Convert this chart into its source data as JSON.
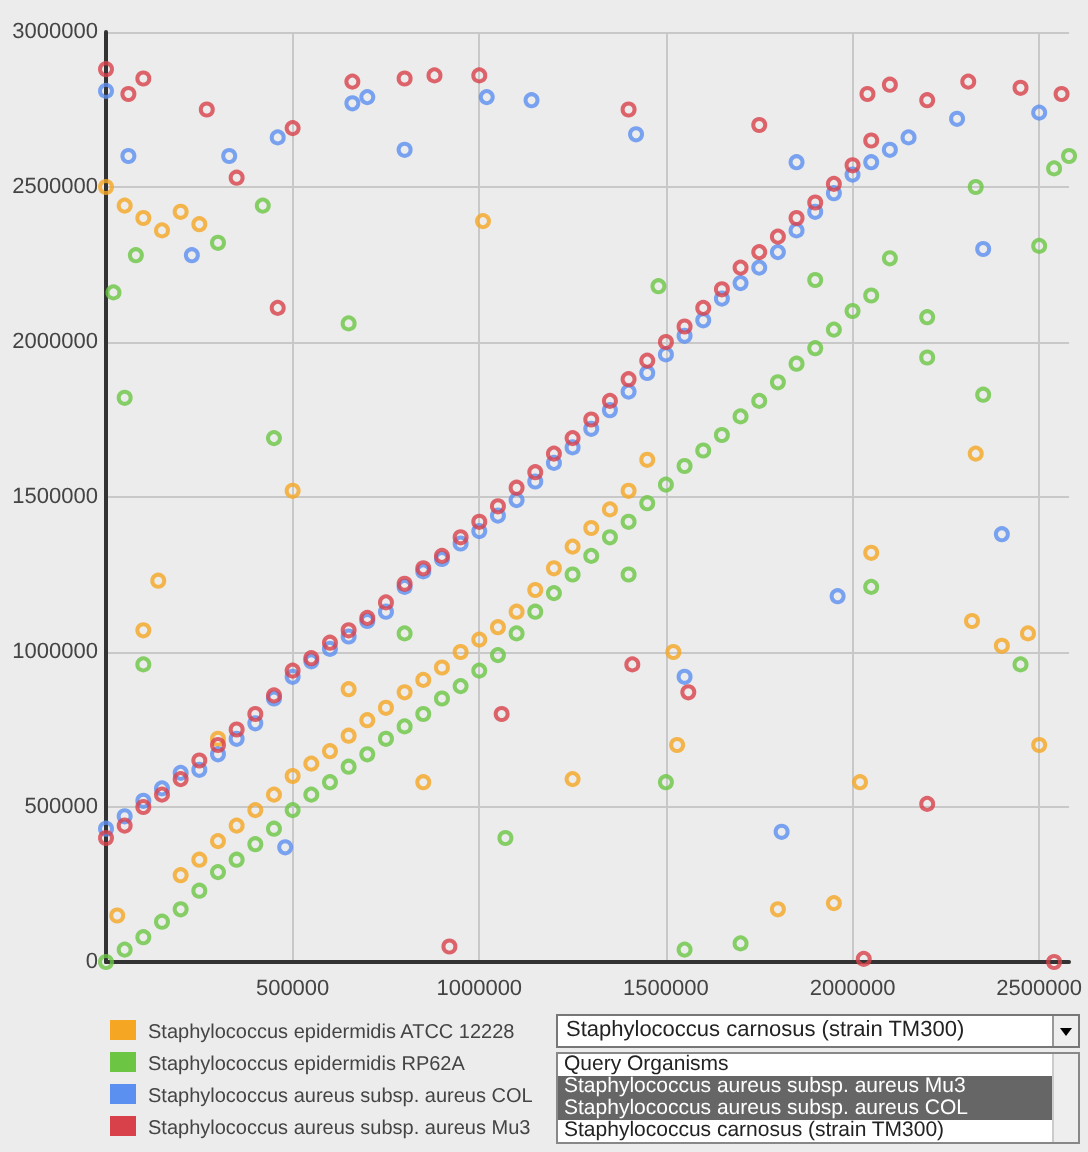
{
  "chart_data": {
    "type": "scatter",
    "marker": "circle",
    "grid": true,
    "legend": "bottom left",
    "xlim": [
      0,
      2580000
    ],
    "xticks": [
      500000,
      1000000,
      1500000,
      2000000,
      2500000
    ],
    "ylim": [
      0,
      3000000
    ],
    "yticks": [
      0,
      500000,
      1000000,
      1500000,
      2000000,
      2500000,
      3000000
    ],
    "annotations": [
      "Staphylococcus carnosus (strain TM300)",
      "Query Organisms",
      "Staphylococcus aureus subsp. aureus Mu3",
      "Staphylococcus aureus subsp. aureus COL",
      "Staphylococcus carnosus (strain TM300)"
    ],
    "series": [
      {
        "name": "Staphylococcus epidermidis ATCC 12228",
        "color": "#f5a623",
        "x": [
          0,
          50000,
          100000,
          150000,
          200000,
          250000,
          300000,
          350000,
          400000,
          450000,
          500000,
          550000,
          600000,
          650000,
          700000,
          750000,
          800000,
          850000,
          900000,
          950000,
          1000000,
          1050000,
          1100000,
          1150000,
          1200000,
          1250000,
          1300000,
          1350000,
          1400000,
          1450000,
          200000,
          250000,
          300000,
          30000,
          100000,
          140000,
          500000,
          650000,
          850000,
          1250000,
          1530000,
          1520000,
          1800000,
          1950000,
          2020000,
          2050000,
          2320000,
          2400000,
          2470000,
          2500000,
          2330000,
          1010000
        ],
        "values": [
          2500000,
          2440000,
          2400000,
          2360000,
          280000,
          330000,
          390000,
          440000,
          490000,
          540000,
          600000,
          640000,
          680000,
          730000,
          780000,
          820000,
          870000,
          910000,
          950000,
          1000000,
          1040000,
          1080000,
          1130000,
          1200000,
          1270000,
          1340000,
          1400000,
          1460000,
          1520000,
          1620000,
          2420000,
          2380000,
          720000,
          150000,
          1070000,
          1230000,
          1520000,
          880000,
          580000,
          590000,
          700000,
          1000000,
          170000,
          190000,
          580000,
          1320000,
          1100000,
          1020000,
          1060000,
          700000,
          1640000,
          2390000
        ]
      },
      {
        "name": "Staphylococcus epidermidis RP62A",
        "color": "#6cc644",
        "x": [
          0,
          50000,
          100000,
          150000,
          200000,
          250000,
          300000,
          350000,
          400000,
          450000,
          500000,
          550000,
          600000,
          650000,
          700000,
          750000,
          800000,
          850000,
          900000,
          950000,
          1000000,
          1050000,
          1100000,
          1150000,
          1200000,
          1250000,
          1300000,
          1350000,
          1400000,
          1450000,
          1500000,
          1550000,
          1600000,
          1650000,
          1700000,
          1750000,
          1800000,
          1850000,
          1900000,
          1950000,
          2000000,
          2050000,
          2540000,
          2580000,
          20000,
          50000,
          80000,
          100000,
          300000,
          420000,
          800000,
          1070000,
          1400000,
          1480000,
          1500000,
          1550000,
          1700000,
          1900000,
          2050000,
          2100000,
          2200000,
          2330000,
          2450000,
          2500000,
          2200000,
          2350000,
          450000,
          650000
        ],
        "values": [
          0,
          40000,
          80000,
          130000,
          170000,
          230000,
          290000,
          330000,
          380000,
          430000,
          490000,
          540000,
          580000,
          630000,
          670000,
          720000,
          760000,
          800000,
          850000,
          890000,
          940000,
          990000,
          1060000,
          1130000,
          1190000,
          1250000,
          1310000,
          1370000,
          1420000,
          1480000,
          1540000,
          1600000,
          1650000,
          1700000,
          1760000,
          1810000,
          1870000,
          1930000,
          1980000,
          2040000,
          2100000,
          2150000,
          2560000,
          2600000,
          2160000,
          1820000,
          2280000,
          960000,
          2320000,
          2440000,
          1060000,
          400000,
          1250000,
          2180000,
          580000,
          40000,
          60000,
          2200000,
          1210000,
          2270000,
          2080000,
          2500000,
          960000,
          2310000,
          1950000,
          1830000,
          1690000,
          2060000
        ]
      },
      {
        "name": "Staphylococcus aureus subsp. aureus COL",
        "color": "#5b8ff0",
        "x": [
          0,
          50000,
          100000,
          150000,
          200000,
          250000,
          300000,
          350000,
          400000,
          450000,
          500000,
          550000,
          600000,
          650000,
          700000,
          750000,
          800000,
          850000,
          900000,
          950000,
          1000000,
          1050000,
          1100000,
          1150000,
          1200000,
          1250000,
          1300000,
          1350000,
          1400000,
          1450000,
          1500000,
          1550000,
          1600000,
          1650000,
          1700000,
          1750000,
          1800000,
          1850000,
          1900000,
          1950000,
          2000000,
          2050000,
          2100000,
          2150000,
          0,
          60000,
          230000,
          330000,
          460000,
          660000,
          700000,
          800000,
          1020000,
          1140000,
          1420000,
          1550000,
          1810000,
          1960000,
          2280000,
          2500000,
          2400000,
          2350000,
          480000,
          1850000
        ],
        "values": [
          430000,
          470000,
          520000,
          560000,
          610000,
          620000,
          670000,
          720000,
          770000,
          850000,
          920000,
          970000,
          1010000,
          1050000,
          1100000,
          1130000,
          1210000,
          1260000,
          1300000,
          1350000,
          1390000,
          1440000,
          1490000,
          1550000,
          1610000,
          1660000,
          1720000,
          1780000,
          1840000,
          1900000,
          1960000,
          2020000,
          2070000,
          2140000,
          2190000,
          2240000,
          2290000,
          2360000,
          2420000,
          2480000,
          2540000,
          2580000,
          2620000,
          2660000,
          2810000,
          2600000,
          2280000,
          2600000,
          2660000,
          2770000,
          2790000,
          2620000,
          2790000,
          2780000,
          2670000,
          920000,
          420000,
          1180000,
          2720000,
          2740000,
          1380000,
          2300000,
          370000,
          2580000
        ]
      },
      {
        "name": "Staphylococcus aureus subsp. aureus Mu3",
        "color": "#d9414a",
        "x": [
          0,
          50000,
          100000,
          150000,
          200000,
          250000,
          300000,
          350000,
          400000,
          450000,
          500000,
          550000,
          600000,
          650000,
          700000,
          750000,
          800000,
          850000,
          900000,
          950000,
          1000000,
          1050000,
          1100000,
          1150000,
          1200000,
          1250000,
          1300000,
          1350000,
          1400000,
          1450000,
          1500000,
          1550000,
          1600000,
          1650000,
          1700000,
          1750000,
          1800000,
          1850000,
          1900000,
          1950000,
          2000000,
          2050000,
          0,
          60000,
          100000,
          270000,
          350000,
          460000,
          500000,
          660000,
          800000,
          880000,
          1000000,
          1060000,
          1400000,
          1410000,
          1560000,
          1750000,
          2040000,
          2100000,
          2200000,
          2310000,
          2450000,
          2560000,
          2540000,
          2200000,
          2030000,
          920000
        ],
        "values": [
          400000,
          440000,
          500000,
          540000,
          590000,
          650000,
          700000,
          750000,
          800000,
          860000,
          940000,
          980000,
          1030000,
          1070000,
          1110000,
          1160000,
          1220000,
          1270000,
          1310000,
          1370000,
          1420000,
          1470000,
          1530000,
          1580000,
          1640000,
          1690000,
          1750000,
          1810000,
          1880000,
          1940000,
          2000000,
          2050000,
          2110000,
          2170000,
          2240000,
          2290000,
          2340000,
          2400000,
          2450000,
          2510000,
          2570000,
          2650000,
          2880000,
          2800000,
          2850000,
          2750000,
          2530000,
          2110000,
          2690000,
          2840000,
          2850000,
          2860000,
          2860000,
          800000,
          2750000,
          960000,
          870000,
          2700000,
          2800000,
          2830000,
          2780000,
          2840000,
          2820000,
          2800000,
          0,
          510000,
          10000,
          50000
        ]
      }
    ]
  }
}
